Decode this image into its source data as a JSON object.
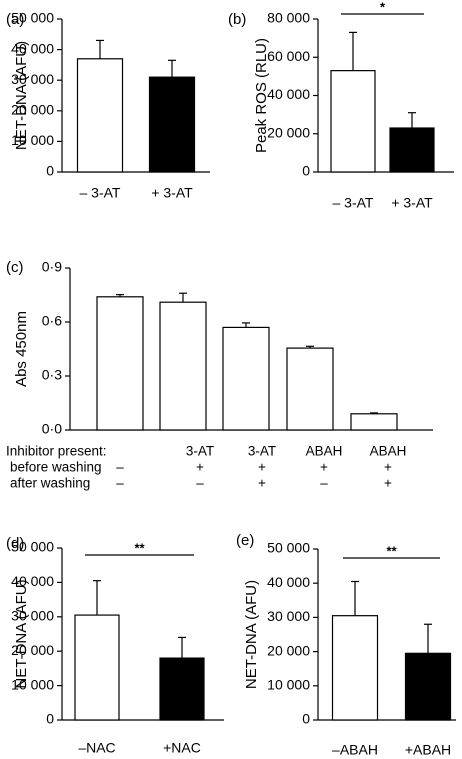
{
  "chart_data": [
    {
      "id": "a",
      "type": "bar",
      "panel_label": "(a)",
      "ylabel": "NET-DNA (AFU)",
      "ylim": [
        0,
        50000
      ],
      "yticks": [
        "0",
        "10 000",
        "20 000",
        "30 000",
        "40 000",
        "50 000"
      ],
      "ytick_values": [
        0,
        10000,
        20000,
        30000,
        40000,
        50000
      ],
      "categories": [
        "– 3-AT",
        "+ 3-AT"
      ],
      "values": [
        37000,
        31000
      ],
      "errors": [
        6000,
        5500
      ],
      "fills": [
        "#ffffff",
        "#000000"
      ],
      "significance": null
    },
    {
      "id": "b",
      "type": "bar",
      "panel_label": "(b)",
      "ylabel": "Peak ROS (RLU)",
      "ylim": [
        0,
        80000
      ],
      "yticks": [
        "0",
        "20 000",
        "40 000",
        "60 000",
        "80 000"
      ],
      "ytick_values": [
        0,
        20000,
        40000,
        60000,
        80000
      ],
      "categories": [
        "– 3-AT",
        "+ 3-AT"
      ],
      "values": [
        53000,
        23000
      ],
      "errors": [
        20000,
        8000
      ],
      "fills": [
        "#ffffff",
        "#000000"
      ],
      "significance": "*"
    },
    {
      "id": "c",
      "type": "bar",
      "panel_label": "(c)",
      "ylabel": "Abs 450nm",
      "ylim": [
        0,
        0.9
      ],
      "yticks": [
        "0·0",
        "0·3",
        "0·6",
        "0·9"
      ],
      "ytick_values": [
        0,
        0.3,
        0.6,
        0.9
      ],
      "values": [
        0.74,
        0.71,
        0.57,
        0.455,
        0.09
      ],
      "errors": [
        0.012,
        0.05,
        0.025,
        0.01,
        0.005
      ],
      "fills": [
        "#ffffff",
        "#ffffff",
        "#ffffff",
        "#ffffff",
        "#ffffff"
      ],
      "significance": null,
      "table": {
        "row_labels": [
          "Inhibitor present:",
          "before washing",
          "after washing"
        ],
        "inhibitor": [
          "",
          "3-AT",
          "3-AT",
          "ABAH",
          "ABAH"
        ],
        "before": [
          "–",
          "+",
          "+",
          "+",
          "+"
        ],
        "after": [
          "–",
          "–",
          "+",
          "–",
          "+"
        ]
      }
    },
    {
      "id": "d",
      "type": "bar",
      "panel_label": "(d)",
      "ylabel": "NET-DNA (AFU)",
      "ylim": [
        0,
        50000
      ],
      "yticks": [
        "0",
        "10 000",
        "20 000",
        "30 000",
        "40 000",
        "50 000"
      ],
      "ytick_values": [
        0,
        10000,
        20000,
        30000,
        40000,
        50000
      ],
      "categories": [
        "–NAC",
        "+NAC"
      ],
      "values": [
        30500,
        18000
      ],
      "errors": [
        10000,
        6000
      ],
      "fills": [
        "#ffffff",
        "#000000"
      ],
      "significance": "**"
    },
    {
      "id": "e",
      "type": "bar",
      "panel_label": "(e)",
      "ylabel": "NET-DNA (AFU)",
      "ylim": [
        0,
        50000
      ],
      "yticks": [
        "0",
        "10 000",
        "20 000",
        "30 000",
        "40 000",
        "50 000"
      ],
      "ytick_values": [
        0,
        10000,
        20000,
        30000,
        40000,
        50000
      ],
      "categories": [
        "–ABAH",
        "+ABAH"
      ],
      "values": [
        30500,
        19500
      ],
      "errors": [
        10000,
        8500
      ],
      "fills": [
        "#ffffff",
        "#000000"
      ],
      "significance": "**"
    }
  ]
}
